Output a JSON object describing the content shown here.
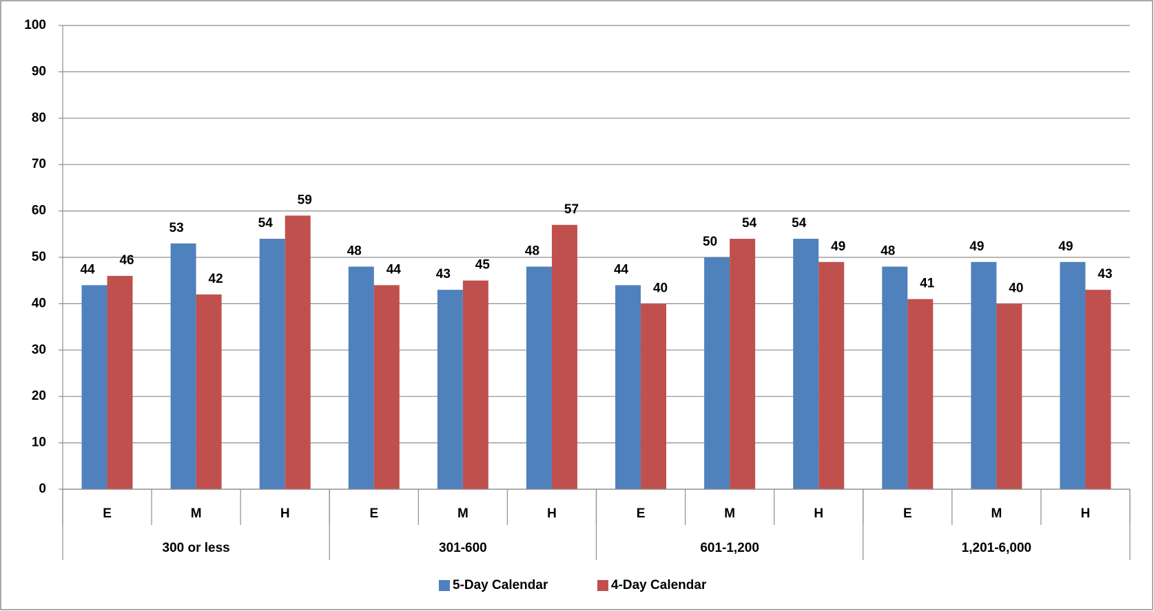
{
  "chart_data": {
    "type": "bar",
    "categories": [
      "E",
      "M",
      "H",
      "E",
      "M",
      "H",
      "E",
      "M",
      "H",
      "E",
      "M",
      "H"
    ],
    "groups": [
      "300 or less",
      "301-600",
      "601-1,200",
      "1,201-6,000"
    ],
    "series": [
      {
        "name": "5-Day Calendar",
        "color": "#4f81bd",
        "values": [
          44,
          53,
          54,
          48,
          43,
          48,
          44,
          50,
          54,
          48,
          49,
          49
        ]
      },
      {
        "name": "4-Day Calendar",
        "color": "#c0504d",
        "values": [
          46,
          42,
          59,
          44,
          45,
          57,
          40,
          54,
          49,
          41,
          40,
          43
        ]
      }
    ],
    "ylim": [
      0,
      100
    ],
    "yticks": [
      0,
      10,
      20,
      30,
      40,
      50,
      60,
      70,
      80,
      90,
      100
    ],
    "grid": true,
    "legend": "bottom"
  }
}
